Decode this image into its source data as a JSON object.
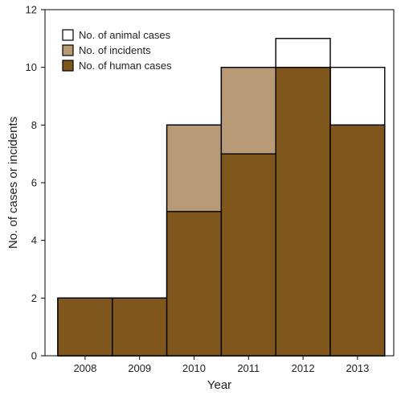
{
  "chart_data": {
    "type": "bar",
    "categories": [
      "2008",
      "2009",
      "2010",
      "2011",
      "2012",
      "2013"
    ],
    "series": [
      {
        "name": "No. of animal cases",
        "values": [
          2,
          2,
          8,
          10,
          11,
          10
        ],
        "color": "#ffffff"
      },
      {
        "name": "No. of incidents",
        "values": [
          2,
          2,
          8,
          10,
          10,
          8
        ],
        "color": "#b89a77"
      },
      {
        "name": "No. of human cases",
        "values": [
          2,
          2,
          5,
          7,
          10,
          8
        ],
        "color": "#7f561b"
      }
    ],
    "overlaid": true,
    "xlabel": "Year",
    "ylabel": "No. of cases or incidents",
    "ylim": [
      0,
      12
    ],
    "yticks": [
      0,
      2,
      4,
      6,
      8,
      10,
      12
    ],
    "grid": false,
    "legend_position": "top-left"
  }
}
